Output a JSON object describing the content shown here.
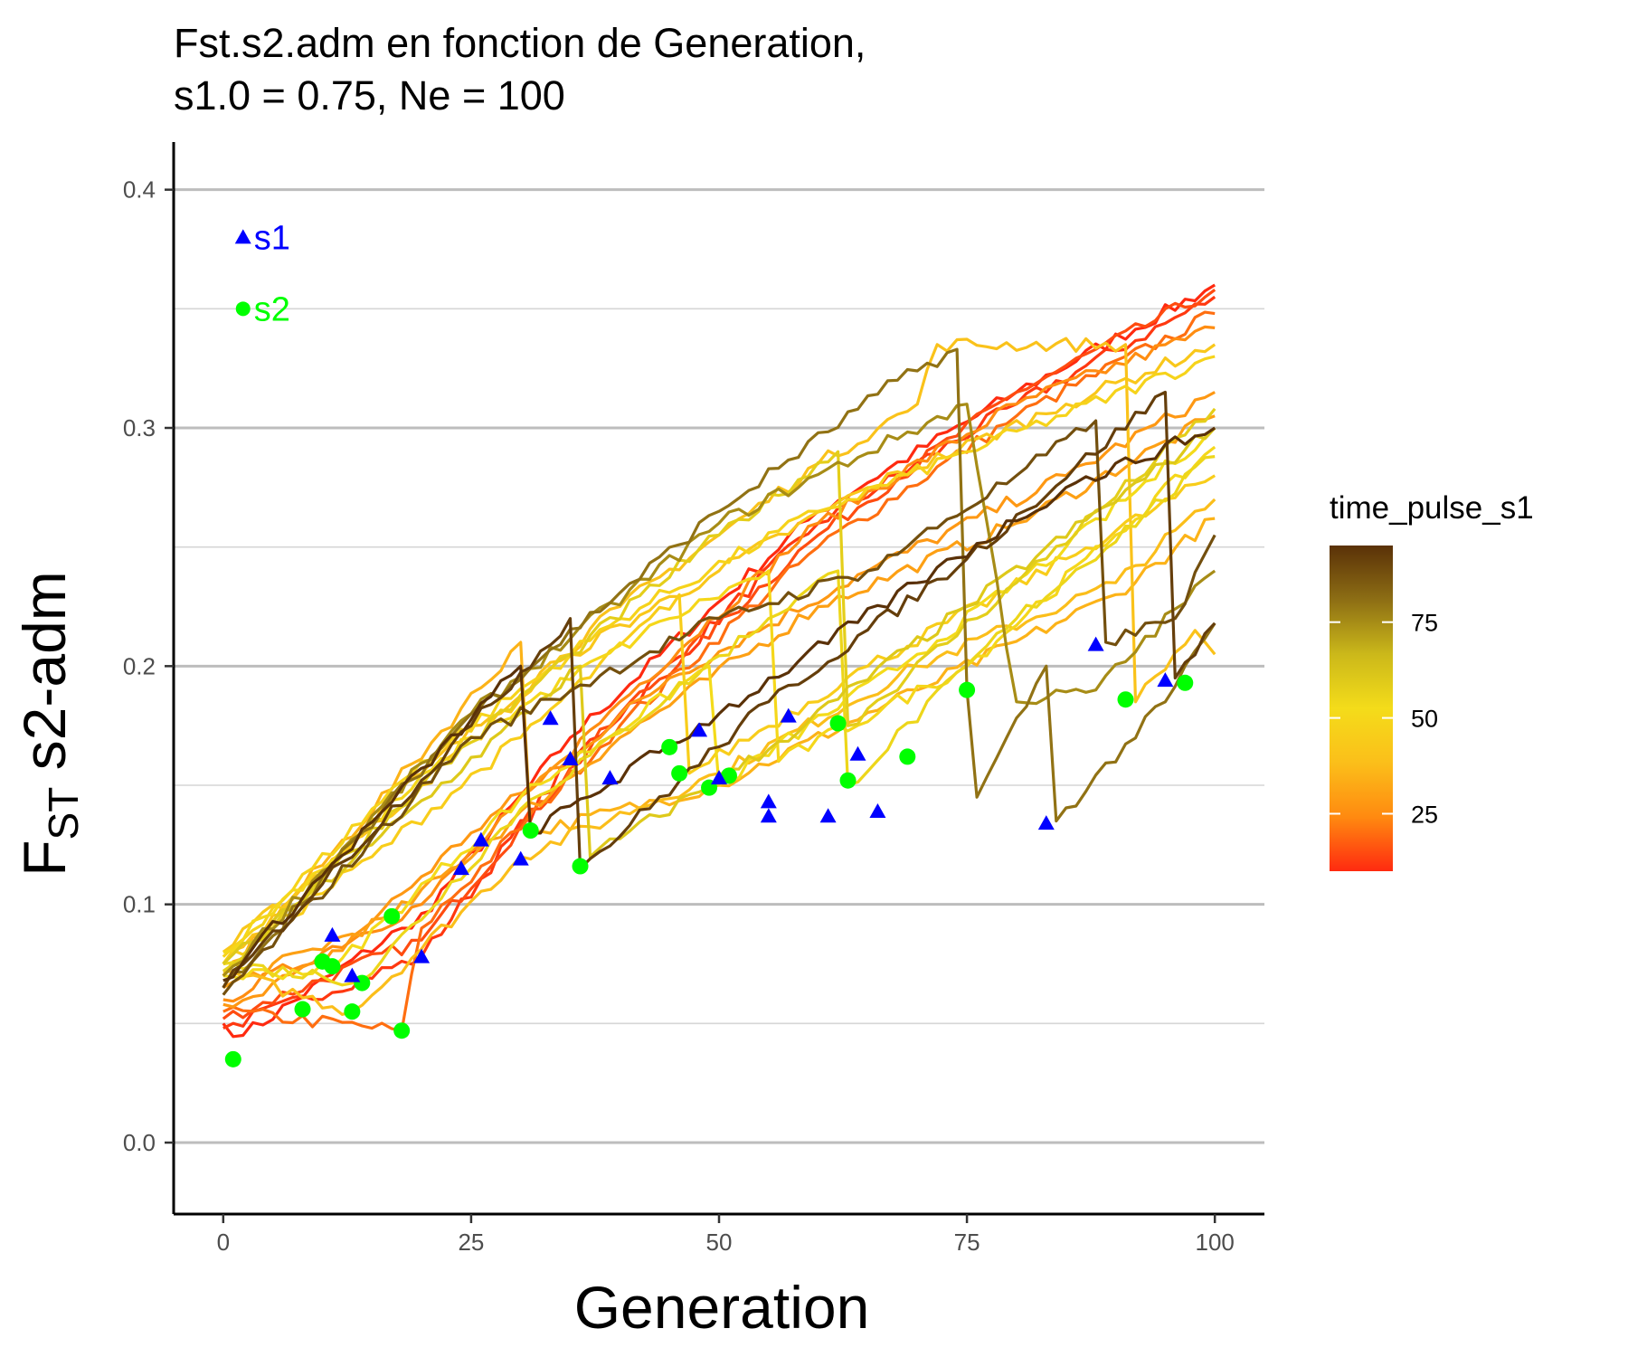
{
  "title": {
    "line1": "Fst.s2.adm en fonction de Generation,",
    "line2": "s1.0 = 0.75, Ne = 100"
  },
  "colors": {
    "s1_marker": "#0000ff",
    "s2_marker": "#00ff00",
    "grid": "#bdbdbd",
    "axis": "#000000",
    "gradient": [
      "#ff2a10",
      "#ff8a10",
      "#fbbf1a",
      "#f4dc1a",
      "#cbb81a",
      "#8d6e14",
      "#5a3108"
    ]
  },
  "chart_data": {
    "type": "line",
    "xlabel": "Generation",
    "ylabel_main": "F",
    "ylabel_sub": "ST",
    "ylabel_rest": " s2-adm",
    "xlim": [
      -5,
      105
    ],
    "ylim": [
      -0.03,
      0.42
    ],
    "x_ticks": [
      0,
      25,
      50,
      75,
      100
    ],
    "x_tick_labels": [
      "0",
      "25",
      "50",
      "75",
      "100"
    ],
    "y_ticks": [
      0.0,
      0.1,
      0.2,
      0.3,
      0.4
    ],
    "y_tick_labels": [
      "0.0",
      "0.1",
      "0.2",
      "0.3",
      "0.4"
    ],
    "y_minor_ticks": [
      0.05,
      0.15,
      0.25,
      0.35
    ],
    "grid": "horizontal",
    "legend": {
      "title": "time_pulse_s1",
      "position": "right",
      "range": [
        10,
        95
      ],
      "ticks": [
        25,
        50,
        75
      ],
      "tick_labels": [
        "25",
        "50",
        "75"
      ]
    },
    "annotations": [
      {
        "label": "s1",
        "marker": "triangle",
        "x": 2,
        "y": 0.38
      },
      {
        "label": "s2",
        "marker": "circle",
        "x": 2,
        "y": 0.35
      }
    ],
    "series": [
      {
        "time_pulse_s1": 10,
        "points": [
          [
            0,
            0.05
          ],
          [
            2,
            0.045
          ],
          [
            18,
            0.09
          ],
          [
            19,
            0.09
          ],
          [
            35,
            0.17
          ],
          [
            60,
            0.265
          ],
          [
            80,
            0.315
          ],
          [
            100,
            0.36
          ]
        ]
      },
      {
        "time_pulse_s1": 12,
        "points": [
          [
            0,
            0.048
          ],
          [
            20,
            0.078
          ],
          [
            35,
            0.16
          ],
          [
            60,
            0.26
          ],
          [
            80,
            0.31
          ],
          [
            100,
            0.355
          ]
        ]
      },
      {
        "time_pulse_s1": 15,
        "points": [
          [
            0,
            0.052
          ],
          [
            20,
            0.085
          ],
          [
            40,
            0.18
          ],
          [
            60,
            0.255
          ],
          [
            80,
            0.315
          ],
          [
            100,
            0.358
          ]
        ]
      },
      {
        "time_pulse_s1": 20,
        "points": [
          [
            0,
            0.055
          ],
          [
            18,
            0.047
          ],
          [
            20,
            0.09
          ],
          [
            40,
            0.175
          ],
          [
            60,
            0.25
          ],
          [
            80,
            0.305
          ],
          [
            100,
            0.348
          ]
        ]
      },
      {
        "time_pulse_s1": 25,
        "points": [
          [
            0,
            0.06
          ],
          [
            20,
            0.1
          ],
          [
            40,
            0.185
          ],
          [
            60,
            0.26
          ],
          [
            80,
            0.31
          ],
          [
            100,
            0.342
          ]
        ]
      },
      {
        "time_pulse_s1": 28,
        "points": [
          [
            0,
            0.058
          ],
          [
            10,
            0.075
          ],
          [
            25,
            0.13
          ],
          [
            45,
            0.195
          ],
          [
            65,
            0.24
          ],
          [
            85,
            0.28
          ],
          [
            100,
            0.315
          ]
        ]
      },
      {
        "time_pulse_s1": 30,
        "points": [
          [
            0,
            0.065
          ],
          [
            17,
            0.095
          ],
          [
            40,
            0.17
          ],
          [
            60,
            0.225
          ],
          [
            80,
            0.26
          ],
          [
            100,
            0.305
          ]
        ]
      },
      {
        "time_pulse_s1": 35,
        "points": [
          [
            0,
            0.07
          ],
          [
            30,
            0.21
          ],
          [
            31,
            0.13
          ],
          [
            50,
            0.15
          ],
          [
            70,
            0.19
          ],
          [
            90,
            0.23
          ],
          [
            100,
            0.262
          ]
        ]
      },
      {
        "time_pulse_s1": 38,
        "points": [
          [
            0,
            0.072
          ],
          [
            13,
            0.055
          ],
          [
            30,
            0.12
          ],
          [
            50,
            0.155
          ],
          [
            70,
            0.2
          ],
          [
            90,
            0.235
          ],
          [
            100,
            0.27
          ]
        ]
      },
      {
        "time_pulse_s1": 40,
        "points": [
          [
            0,
            0.075
          ],
          [
            20,
            0.155
          ],
          [
            40,
            0.225
          ],
          [
            60,
            0.285
          ],
          [
            70,
            0.31
          ],
          [
            72,
            0.335
          ],
          [
            91,
            0.335
          ],
          [
            92,
            0.185
          ],
          [
            98,
            0.215
          ],
          [
            100,
            0.205
          ]
        ]
      },
      {
        "time_pulse_s1": 42,
        "points": [
          [
            0,
            0.08
          ],
          [
            20,
            0.15
          ],
          [
            35,
            0.205
          ],
          [
            50,
            0.24
          ],
          [
            65,
            0.275
          ],
          [
            85,
            0.31
          ],
          [
            100,
            0.335
          ]
        ]
      },
      {
        "time_pulse_s1": 45,
        "points": [
          [
            0,
            0.075
          ],
          [
            15,
            0.12
          ],
          [
            30,
            0.17
          ],
          [
            46,
            0.23
          ],
          [
            47,
            0.155
          ],
          [
            65,
            0.2
          ],
          [
            85,
            0.245
          ],
          [
            100,
            0.28
          ]
        ]
      },
      {
        "time_pulse_s1": 48,
        "points": [
          [
            0,
            0.078
          ],
          [
            20,
            0.16
          ],
          [
            40,
            0.22
          ],
          [
            60,
            0.265
          ],
          [
            75,
            0.29
          ],
          [
            100,
            0.33
          ]
        ]
      },
      {
        "time_pulse_s1": 50,
        "points": [
          [
            0,
            0.08
          ],
          [
            25,
            0.17
          ],
          [
            45,
            0.22
          ],
          [
            55,
            0.24
          ],
          [
            56,
            0.16
          ],
          [
            75,
            0.2
          ],
          [
            90,
            0.255
          ],
          [
            100,
            0.292
          ]
        ]
      },
      {
        "time_pulse_s1": 52,
        "points": [
          [
            0,
            0.07
          ],
          [
            11,
            0.073
          ],
          [
            30,
            0.145
          ],
          [
            49,
            0.2
          ],
          [
            50,
            0.15
          ],
          [
            70,
            0.205
          ],
          [
            85,
            0.25
          ],
          [
            100,
            0.3
          ]
        ]
      },
      {
        "time_pulse_s1": 55,
        "points": [
          [
            0,
            0.075
          ],
          [
            14,
            0.068
          ],
          [
            30,
            0.14
          ],
          [
            55,
            0.22
          ],
          [
            62,
            0.24
          ],
          [
            63,
            0.15
          ],
          [
            80,
            0.22
          ],
          [
            100,
            0.288
          ]
        ]
      },
      {
        "time_pulse_s1": 58,
        "points": [
          [
            0,
            0.072
          ],
          [
            20,
            0.15
          ],
          [
            35,
            0.205
          ],
          [
            50,
            0.255
          ],
          [
            62,
            0.29
          ],
          [
            63,
            0.175
          ],
          [
            80,
            0.235
          ],
          [
            100,
            0.308
          ]
        ]
      },
      {
        "time_pulse_s1": 60,
        "points": [
          [
            0,
            0.075
          ],
          [
            15,
            0.125
          ],
          [
            36,
            0.2
          ],
          [
            37,
            0.12
          ],
          [
            55,
            0.165
          ],
          [
            75,
            0.225
          ],
          [
            100,
            0.3
          ]
        ]
      },
      {
        "time_pulse_s1": 75,
        "points": [
          [
            0,
            0.07
          ],
          [
            25,
            0.18
          ],
          [
            50,
            0.26
          ],
          [
            75,
            0.31
          ],
          [
            80,
            0.185
          ],
          [
            88,
            0.19
          ],
          [
            100,
            0.24
          ]
        ]
      },
      {
        "time_pulse_s1": 80,
        "points": [
          [
            0,
            0.065
          ],
          [
            25,
            0.18
          ],
          [
            50,
            0.265
          ],
          [
            68,
            0.32
          ],
          [
            74,
            0.333
          ],
          [
            75,
            0.19
          ],
          [
            76,
            0.145
          ],
          [
            83,
            0.2
          ],
          [
            84,
            0.135
          ],
          [
            95,
            0.185
          ],
          [
            100,
            0.218
          ]
        ]
      },
      {
        "time_pulse_s1": 88,
        "points": [
          [
            0,
            0.062
          ],
          [
            25,
            0.17
          ],
          [
            50,
            0.22
          ],
          [
            65,
            0.24
          ],
          [
            80,
            0.28
          ],
          [
            88,
            0.303
          ],
          [
            89,
            0.21
          ],
          [
            96,
            0.22
          ],
          [
            100,
            0.255
          ]
        ]
      },
      {
        "time_pulse_s1": 92,
        "points": [
          [
            0,
            0.065
          ],
          [
            25,
            0.175
          ],
          [
            35,
            0.22
          ],
          [
            36,
            0.115
          ],
          [
            55,
            0.185
          ],
          [
            75,
            0.245
          ],
          [
            95,
            0.315
          ],
          [
            96,
            0.195
          ],
          [
            100,
            0.218
          ]
        ]
      },
      {
        "time_pulse_s1": 95,
        "points": [
          [
            0,
            0.068
          ],
          [
            30,
            0.2
          ],
          [
            31,
            0.13
          ],
          [
            50,
            0.18
          ],
          [
            70,
            0.235
          ],
          [
            85,
            0.275
          ],
          [
            100,
            0.3
          ]
        ]
      }
    ],
    "markers_s1": [
      [
        11,
        0.087
      ],
      [
        13,
        0.07
      ],
      [
        20,
        0.078
      ],
      [
        24,
        0.115
      ],
      [
        26,
        0.127
      ],
      [
        30,
        0.119
      ],
      [
        33,
        0.178
      ],
      [
        35,
        0.161
      ],
      [
        39,
        0.153
      ],
      [
        48,
        0.173
      ],
      [
        50,
        0.153
      ],
      [
        55,
        0.143
      ],
      [
        55,
        0.137
      ],
      [
        57,
        0.179
      ],
      [
        61,
        0.137
      ],
      [
        64,
        0.163
      ],
      [
        66,
        0.139
      ],
      [
        83,
        0.134
      ],
      [
        88,
        0.209
      ],
      [
        95,
        0.194
      ]
    ],
    "markers_s2": [
      [
        1,
        0.035
      ],
      [
        8,
        0.056
      ],
      [
        10,
        0.076
      ],
      [
        11,
        0.074
      ],
      [
        13,
        0.055
      ],
      [
        14,
        0.067
      ],
      [
        17,
        0.095
      ],
      [
        18,
        0.047
      ],
      [
        31,
        0.131
      ],
      [
        36,
        0.116
      ],
      [
        45,
        0.166
      ],
      [
        46,
        0.155
      ],
      [
        49,
        0.149
      ],
      [
        51,
        0.154
      ],
      [
        62,
        0.176
      ],
      [
        63,
        0.152
      ],
      [
        69,
        0.162
      ],
      [
        75,
        0.19
      ],
      [
        91,
        0.186
      ],
      [
        97,
        0.193
      ]
    ]
  }
}
